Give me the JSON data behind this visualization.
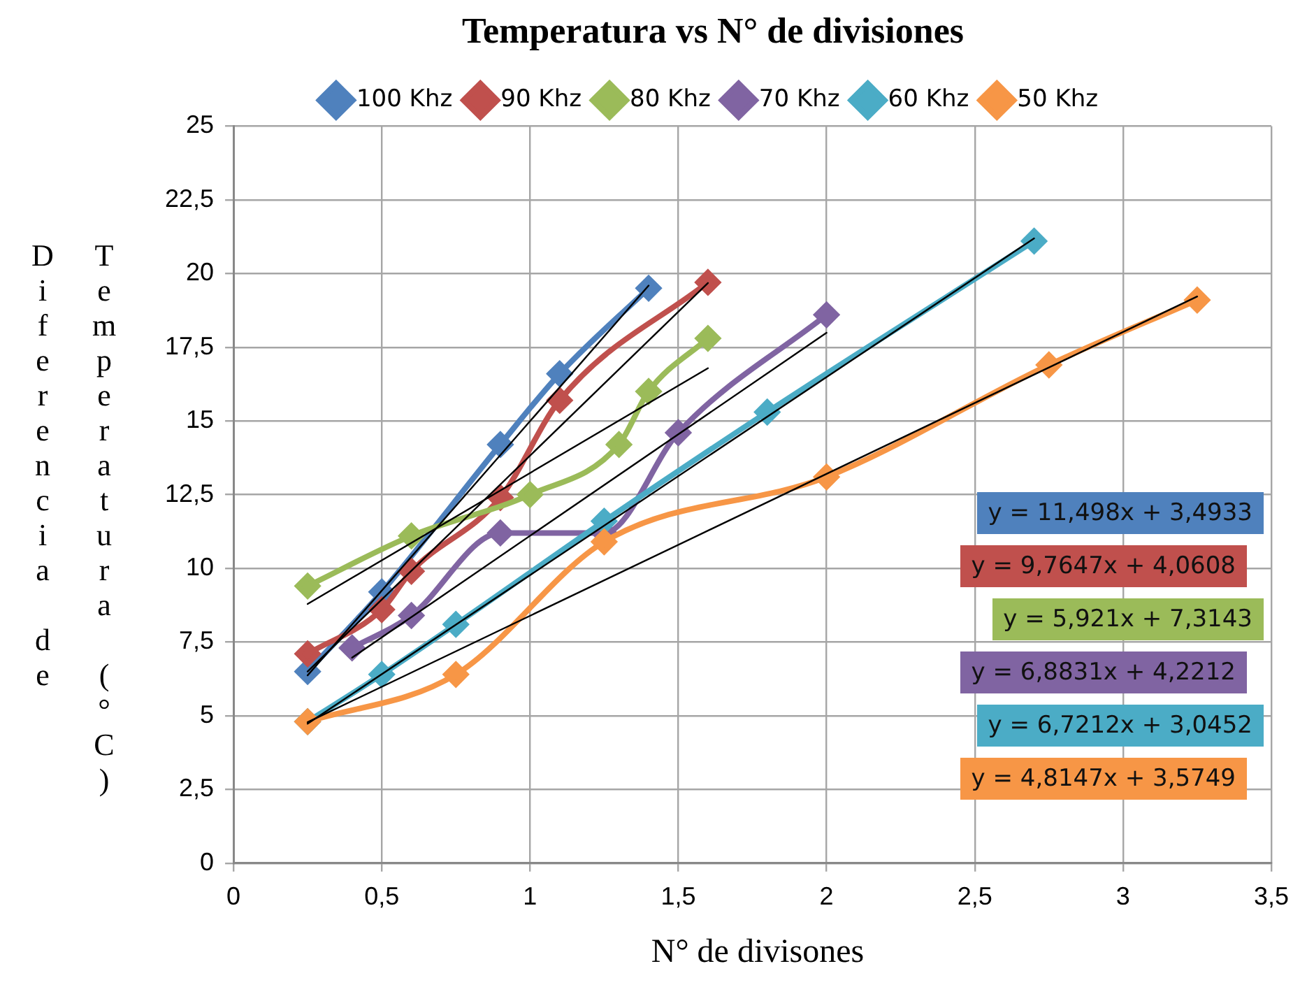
{
  "chart_data": {
    "type": "line",
    "title": "Temperatura vs N° de divisiones",
    "xlabel": "N° de divisones",
    "ylabel": "Diferencia de Temperatura (°C)",
    "xlim": [
      0,
      3.5
    ],
    "xticks": [
      0,
      {
        "value": 0.5,
        "label": "0,5"
      },
      1,
      {
        "value": 1.5,
        "label": "1,5"
      },
      2,
      {
        "value": 2.5,
        "label": "2,5"
      },
      3,
      {
        "value": 3.5,
        "label": "3,5"
      }
    ],
    "ylim": [
      0,
      25
    ],
    "yticks": [
      0,
      {
        "value": 2.5,
        "label": "2,5"
      },
      5,
      {
        "value": 7.5,
        "label": "7,5"
      },
      10,
      {
        "value": 12.5,
        "label": "12,5"
      },
      15,
      {
        "value": 17.5,
        "label": "17,5"
      },
      20,
      {
        "value": 22.5,
        "label": "22,5"
      },
      25
    ],
    "grid": true,
    "legend": "top",
    "marker": "diamond",
    "line_style": "solid",
    "series": [
      {
        "name": "100 Khz",
        "color": "#4f81bd",
        "x": [
          0.25,
          0.5,
          0.9,
          1.1,
          1.4
        ],
        "values": [
          6.5,
          9.2,
          14.2,
          16.6,
          19.5
        ]
      },
      {
        "name": "90 Khz",
        "color": "#c0504d",
        "x": [
          0.25,
          0.5,
          0.6,
          0.9,
          1.1,
          1.6
        ],
        "values": [
          7.1,
          8.6,
          9.9,
          12.4,
          15.7,
          19.7
        ]
      },
      {
        "name": "80 Khz",
        "color": "#9bbb59",
        "x": [
          0.25,
          0.6,
          1.0,
          1.3,
          1.4,
          1.6
        ],
        "values": [
          9.4,
          11.1,
          12.5,
          14.2,
          16.0,
          17.8
        ]
      },
      {
        "name": "70 Khz",
        "color": "#8064a2",
        "x": [
          0.4,
          0.6,
          0.9,
          1.25,
          1.5,
          2.0
        ],
        "values": [
          7.3,
          8.4,
          11.2,
          11.2,
          14.6,
          18.6
        ]
      },
      {
        "name": "60 Khz",
        "color": "#4bacc6",
        "x": [
          0.25,
          0.5,
          0.75,
          1.25,
          1.8,
          2.7
        ],
        "values": [
          4.8,
          6.4,
          8.1,
          11.6,
          15.3,
          21.1
        ]
      },
      {
        "name": "50 Khz",
        "color": "#f79646",
        "x": [
          0.25,
          0.75,
          1.25,
          2.0,
          2.75,
          3.25
        ],
        "values": [
          4.8,
          6.4,
          10.9,
          13.1,
          16.9,
          19.1
        ]
      },
      {
        "type": "line",
        "color": "#000000",
        "marker": "none",
        "x": [
          0.25,
          1.4
        ],
        "values": [
          6.37,
          19.59
        ]
      },
      {
        "type": "line",
        "color": "#000000",
        "marker": "none",
        "x": [
          0.25,
          1.6
        ],
        "values": [
          6.5,
          19.68
        ]
      },
      {
        "type": "line",
        "color": "#000000",
        "marker": "none",
        "x": [
          0.25,
          1.6
        ],
        "values": [
          8.79,
          16.79
        ]
      },
      {
        "type": "line",
        "color": "#000000",
        "marker": "none",
        "x": [
          0.4,
          2.0
        ],
        "values": [
          6.97,
          17.99
        ]
      },
      {
        "type": "line",
        "color": "#000000",
        "marker": "none",
        "x": [
          0.25,
          2.7
        ],
        "values": [
          4.73,
          21.19
        ]
      },
      {
        "type": "line",
        "color": "#000000",
        "marker": "none",
        "x": [
          0.25,
          3.25
        ],
        "values": [
          4.78,
          19.22
        ]
      }
    ],
    "annotations": [
      "y = 11,498x + 3,4933",
      "y = 9,7647x + 4,0608",
      "y = 5,921x + 7,3143",
      "y = 6,8831x + 4,2212",
      "y = 6,7212x + 3,0452",
      "y = 4,8147x + 3,5749"
    ]
  }
}
